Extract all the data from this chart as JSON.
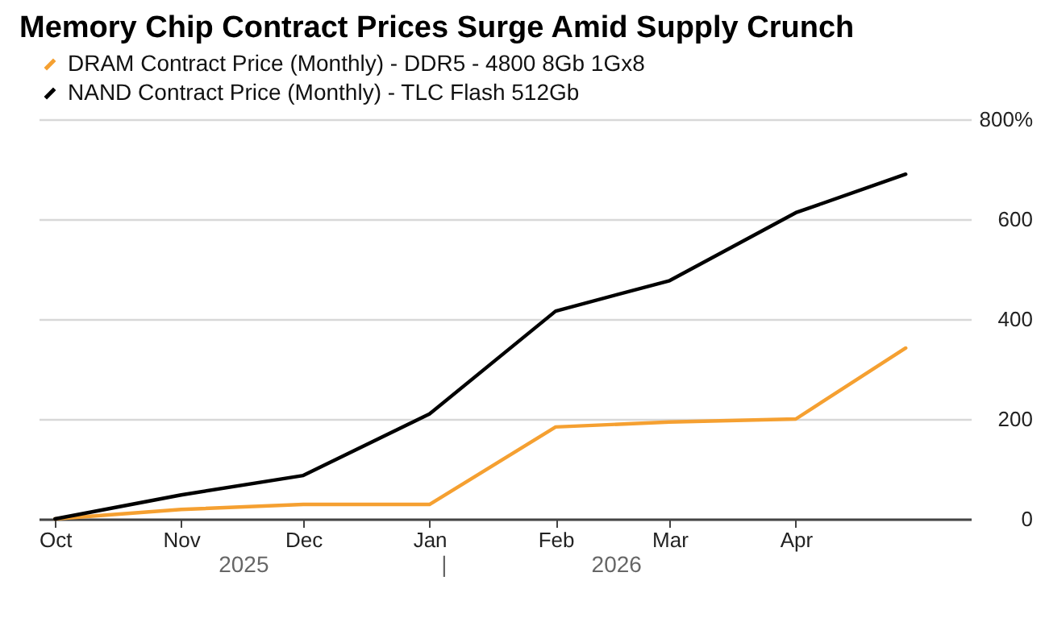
{
  "chart_data": {
    "type": "line",
    "title": "Memory Chip Contract Prices Surge Amid Supply Crunch",
    "x": [
      "2025-10-01",
      "2025-11-01",
      "2025-12-01",
      "2026-01-01",
      "2026-02-01",
      "2026-03-01",
      "2026-04-01",
      "2026-04-28"
    ],
    "series": [
      {
        "name": "DRAM Contract Price (Monthly) - DDR5 - 4800 8Gb 1Gx8",
        "color": "#f5a031",
        "values": [
          0,
          19,
          29,
          29,
          184,
          194,
          200,
          342
        ]
      },
      {
        "name": "NAND Contract Price (Monthly) - TLC Flash 512Gb",
        "color": "#000000",
        "values": [
          0,
          48,
          87,
          210,
          416,
          477,
          613,
          690
        ]
      }
    ],
    "xlim": [
      "2025-09-27",
      "2026-05-14"
    ],
    "xticks": [
      {
        "value": "2025-10-01",
        "label": "Oct"
      },
      {
        "value": "2025-11-01",
        "label": "Nov"
      },
      {
        "value": "2025-12-01",
        "label": "Dec"
      },
      {
        "value": "2026-01-01",
        "label": "Jan"
      },
      {
        "value": "2026-02-01",
        "label": "Feb"
      },
      {
        "value": "2026-03-01",
        "label": "Mar"
      },
      {
        "value": "2026-04-01",
        "label": "Apr"
      }
    ],
    "ylim": [
      0,
      800
    ],
    "yticks": [
      0,
      200,
      400,
      600,
      {
        "value": 800,
        "label": "800%"
      }
    ],
    "annotations": [
      "2025",
      "|",
      "2026"
    ],
    "grid": "y",
    "legend": "top left",
    "marker": "none",
    "line_style": "solid"
  }
}
